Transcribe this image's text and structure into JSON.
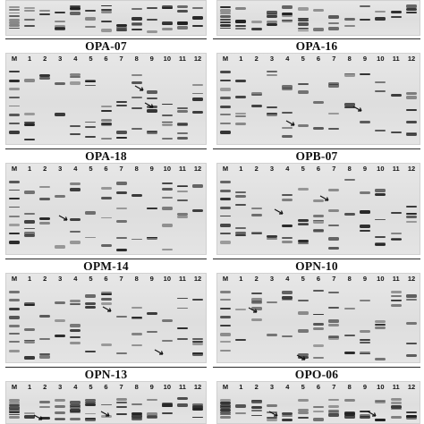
{
  "panels": [
    {
      "key": "p0",
      "title": ""
    },
    {
      "key": "p1",
      "title": ""
    },
    {
      "key": "p2",
      "title": "OPA-07"
    },
    {
      "key": "p3",
      "title": "OPA-16"
    },
    {
      "key": "p4",
      "title": "OPA-18"
    },
    {
      "key": "p5",
      "title": "OPB-07"
    },
    {
      "key": "p6",
      "title": "OPM-14"
    },
    {
      "key": "p7",
      "title": "OPN-10"
    },
    {
      "key": "p8",
      "title": "OPN-13"
    },
    {
      "key": "p9",
      "title": "OPO-06"
    }
  ],
  "lane_labels": [
    "M",
    "1",
    "2",
    "3",
    "4",
    "5",
    "6",
    "7",
    "8",
    "9",
    "10",
    "11",
    "12"
  ],
  "colors": {
    "band": "#1e1e1e",
    "gel": "#e2e2e2",
    "separator": "#2a2a2a"
  },
  "icons": {
    "arrow": "polymorphic-band-arrow-icon"
  }
}
